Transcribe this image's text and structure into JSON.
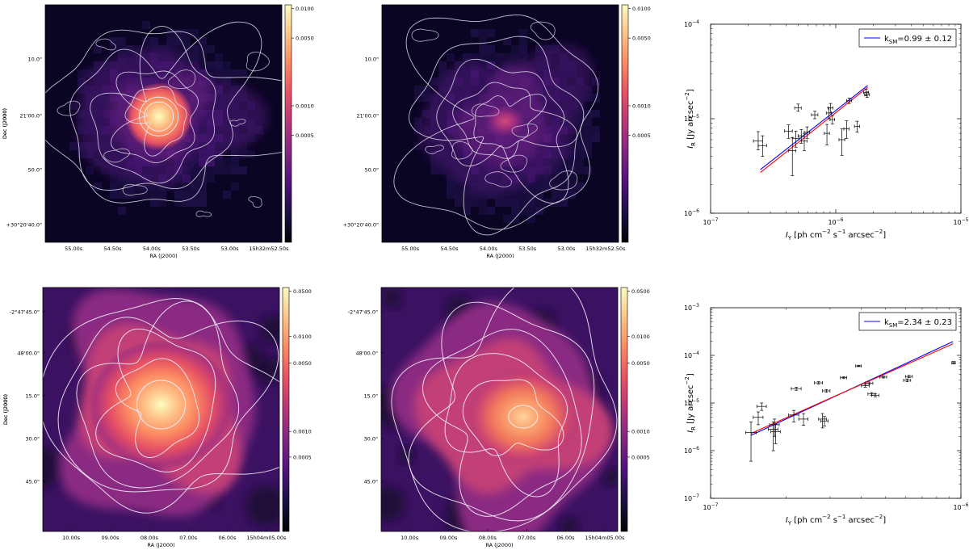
{
  "chart_data": [
    {
      "type": "heatmap",
      "panel": "top-left",
      "xlabel": "RA (J2000)",
      "ylabel": "Dec (J2000)",
      "x_ticks": [
        "55.00s",
        "54.50s",
        "54.00s",
        "53.50s",
        "53.00s",
        "15h32m52.50s"
      ],
      "y_ticks": [
        "10.0\"",
        "21'00.0\"",
        "50.0\"",
        "+30°20'40.0\""
      ],
      "colorbar": {
        "scale": "log",
        "ticks": [
          "0.0100",
          "0.0050",
          "0.0010",
          "0.0005"
        ]
      },
      "peak": {
        "x": 0.48,
        "y": 0.47,
        "strength": 1.0
      }
    },
    {
      "type": "heatmap",
      "panel": "top-middle",
      "xlabel": "RA (J2000)",
      "ylabel": "Dec (J2000)",
      "x_ticks": [
        "55.00s",
        "54.50s",
        "54.00s",
        "53.50s",
        "53.00s",
        "15h32m52.50s"
      ],
      "y_ticks": [
        "10.0\"",
        "21'00.0\"",
        "50.0\"",
        "+30°20'40.0\""
      ],
      "colorbar": {
        "scale": "log",
        "ticks": [
          "0.0100",
          "0.0050",
          "0.0010",
          "0.0005"
        ]
      },
      "peak": {
        "x": 0.52,
        "y": 0.49,
        "strength": 0.55
      }
    },
    {
      "type": "scatter",
      "panel": "top-right",
      "xlabel": "I_Y [ph cm^-2 s^-1 arcsec^-2]",
      "ylabel": "I_R [Jy arcsec^-2]",
      "xscale": "log",
      "yscale": "log",
      "xlim": [
        1e-07,
        1e-05
      ],
      "ylim": [
        1e-06,
        0.0001
      ],
      "x_ticks": [
        "10^-7",
        "10^-6",
        "10^-5"
      ],
      "y_ticks": [
        "10^-6",
        "10^-5",
        "10^-4"
      ],
      "legend": {
        "label": "k_SM=0.99 ± 0.12",
        "loc": "top-right"
      },
      "fits": [
        {
          "color": "#0000ff",
          "x": [
            2.5e-07,
            1.8e-06
          ],
          "y": [
            2.9e-06,
            2.25e-05
          ]
        },
        {
          "color": "#ff0000",
          "x": [
            2.5e-07,
            1.8e-06
          ],
          "y": [
            2.7e-06,
            2.15e-05
          ]
        }
      ],
      "points": [
        {
          "x": 2.4e-07,
          "y": 5.8e-06,
          "yerr": [
            4.7e-06,
            7.3e-06
          ],
          "xerr": [
            2.2e-07,
            2.6e-07
          ]
        },
        {
          "x": 2.6e-07,
          "y": 5.2e-06,
          "yerr": [
            4e-06,
            6.6e-06
          ],
          "xerr": [
            2.4e-07,
            2.8e-07
          ]
        },
        {
          "x": 4.2e-07,
          "y": 7.4e-06,
          "yerr": [
            6.2e-06,
            8.6e-06
          ],
          "xerr": [
            3.9e-07,
            4.5e-07
          ]
        },
        {
          "x": 4.5e-07,
          "y": 4.6e-06,
          "yerr": [
            2.5e-06,
            6.3e-06
          ],
          "xerr": [
            4.2e-07,
            4.8e-07
          ]
        },
        {
          "x": 4.8e-07,
          "y": 6.2e-06,
          "yerr": [
            5e-06,
            7.4e-06
          ],
          "xerr": [
            4.5e-07,
            5.1e-07
          ]
        },
        {
          "x": 5e-07,
          "y": 1.3e-05,
          "yerr": [
            1.2e-05,
            1.43e-05
          ],
          "xerr": [
            4.7e-07,
            5.3e-07
          ]
        },
        {
          "x": 5.3e-07,
          "y": 6.6e-06,
          "yerr": [
            5.5e-06,
            7.7e-06
          ],
          "xerr": [
            5e-07,
            5.6e-07
          ]
        },
        {
          "x": 5.6e-07,
          "y": 5.8e-06,
          "yerr": [
            4.6e-06,
            7e-06
          ],
          "xerr": [
            5.3e-07,
            5.9e-07
          ]
        },
        {
          "x": 5.9e-07,
          "y": 7.2e-06,
          "yerr": [
            6.2e-06,
            8.2e-06
          ],
          "xerr": [
            5.6e-07,
            6.2e-07
          ]
        },
        {
          "x": 6.8e-07,
          "y": 1.1e-05,
          "yerr": [
            1e-05,
            1.2e-05
          ],
          "xerr": [
            6.4e-07,
            7.2e-07
          ]
        },
        {
          "x": 8.5e-07,
          "y": 7e-06,
          "yerr": [
            5.3e-06,
            8.7e-06
          ],
          "xerr": [
            8.1e-07,
            8.9e-07
          ]
        },
        {
          "x": 8.8e-07,
          "y": 1.15e-05,
          "yerr": [
            1e-05,
            1.3e-05
          ],
          "xerr": [
            8.4e-07,
            9.2e-07
          ]
        },
        {
          "x": 9.1e-07,
          "y": 1.3e-05,
          "yerr": [
            1.15e-05,
            1.45e-05
          ],
          "xerr": [
            8.7e-07,
            9.5e-07
          ]
        },
        {
          "x": 9.4e-07,
          "y": 9.8e-06,
          "yerr": [
            8.8e-06,
            1.08e-05
          ],
          "xerr": [
            9e-07,
            9.8e-07
          ]
        },
        {
          "x": 1.12e-06,
          "y": 6e-06,
          "yerr": [
            4.1e-06,
            7.8e-06
          ],
          "xerr": [
            1.06e-06,
            1.18e-06
          ]
        },
        {
          "x": 1.22e-06,
          "y": 7.8e-06,
          "yerr": [
            6.2e-06,
            9.5e-06
          ],
          "xerr": [
            1.16e-06,
            1.28e-06
          ]
        },
        {
          "x": 1.28e-06,
          "y": 1.55e-05,
          "yerr": [
            1.45e-05,
            1.65e-05
          ],
          "xerr": [
            1.22e-06,
            1.34e-06
          ]
        },
        {
          "x": 1.48e-06,
          "y": 8.3e-06,
          "yerr": [
            7.2e-06,
            9.4e-06
          ],
          "xerr": [
            1.41e-06,
            1.55e-06
          ]
        },
        {
          "x": 1.75e-06,
          "y": 1.9e-05,
          "yerr": [
            1.75e-05,
            2.05e-05
          ],
          "xerr": [
            1.67e-06,
            1.83e-06
          ]
        },
        {
          "x": 1.78e-06,
          "y": 1.8e-05,
          "yerr": [
            1.68e-05,
            1.92e-05
          ],
          "xerr": [
            1.7e-06,
            1.86e-06
          ]
        }
      ]
    },
    {
      "type": "heatmap",
      "panel": "bottom-left",
      "xlabel": "RA (J2000)",
      "ylabel": "Dec (J2000)",
      "x_ticks": [
        "10.00s",
        "09.00s",
        "08.00s",
        "07.00s",
        "06.00s",
        "15h04m05.00s"
      ],
      "y_ticks": [
        "-2°47'45.0\"",
        "48'00.0\"",
        "15.0\"",
        "30.0\"",
        "45.0\""
      ],
      "colorbar": {
        "scale": "log",
        "ticks": [
          "0.0500",
          "0.0100",
          "0.0050",
          "0.0010",
          "0.0005"
        ]
      },
      "peak": {
        "x": 0.5,
        "y": 0.48,
        "strength": 1.0
      }
    },
    {
      "type": "heatmap",
      "panel": "bottom-middle",
      "xlabel": "RA (J2000)",
      "ylabel": "Dec (J2000)",
      "x_ticks": [
        "10.00s",
        "09.00s",
        "08.00s",
        "07.00s",
        "06.00s",
        "15h04m05.00s"
      ],
      "y_ticks": [
        "-2°47'45.0\"",
        "48'00.0\"",
        "15.0\"",
        "30.0\"",
        "45.0\""
      ],
      "colorbar": {
        "scale": "log",
        "ticks": [
          "0.0500",
          "0.0100",
          "0.0050",
          "0.0010",
          "0.0005"
        ]
      },
      "peak": {
        "x": 0.6,
        "y": 0.53,
        "strength": 0.7
      }
    },
    {
      "type": "scatter",
      "panel": "bottom-right",
      "xlabel": "I_Y [ph cm^-2 s^-1 arcsec^-2]",
      "ylabel": "I_R [Jy arcsec^-2]",
      "xscale": "log",
      "yscale": "log",
      "xlim": [
        1e-07,
        1e-06
      ],
      "ylim": [
        1e-07,
        0.001
      ],
      "x_ticks": [
        "10^-7",
        "10^-6"
      ],
      "y_ticks": [
        "10^-7",
        "10^-6",
        "10^-5",
        "10^-4",
        "10^-3"
      ],
      "legend": {
        "label": "k_SM=2.34 ± 0.23",
        "loc": "top-right"
      },
      "fits": [
        {
          "color": "#0000ff",
          "x": [
            1.45e-07,
            9.3e-07
          ],
          "y": [
            2.1e-06,
            0.000195
          ]
        },
        {
          "color": "#ff0000",
          "x": [
            1.45e-07,
            9.3e-07
          ],
          "y": [
            2.3e-06,
            0.000175
          ]
        }
      ],
      "points": [
        {
          "x": 1.45e-07,
          "y": 2.4e-06,
          "yerr": [
            6e-07,
            4e-06
          ],
          "xerr": [
            1.38e-07,
            1.52e-07
          ]
        },
        {
          "x": 1.55e-07,
          "y": 5e-06,
          "yerr": [
            3.5e-06,
            6.5e-06
          ],
          "xerr": [
            1.48e-07,
            1.62e-07
          ]
        },
        {
          "x": 1.6e-07,
          "y": 8.5e-06,
          "yerr": [
            7e-06,
            1e-05
          ],
          "xerr": [
            1.53e-07,
            1.67e-07
          ]
        },
        {
          "x": 1.78e-07,
          "y": 2.8e-06,
          "yerr": [
            1e-06,
            4e-06
          ],
          "xerr": [
            1.7e-07,
            1.86e-07
          ]
        },
        {
          "x": 1.8e-07,
          "y": 3.5e-06,
          "yerr": [
            2e-06,
            4.6e-06
          ],
          "xerr": [
            1.72e-07,
            1.88e-07
          ]
        },
        {
          "x": 1.82e-07,
          "y": 2.5e-06,
          "yerr": [
            1.4e-06,
            3.6e-06
          ],
          "xerr": [
            1.74e-07,
            1.9e-07
          ]
        },
        {
          "x": 2.15e-07,
          "y": 5.6e-06,
          "yerr": [
            4e-06,
            7e-06
          ],
          "xerr": [
            2.05e-07,
            2.25e-07
          ]
        },
        {
          "x": 2.2e-07,
          "y": 2e-05,
          "yerr": [
            1.85e-05,
            2.15e-05
          ],
          "xerr": [
            2.1e-07,
            2.3e-07
          ]
        },
        {
          "x": 2.35e-07,
          "y": 4.6e-06,
          "yerr": [
            3.4e-06,
            6e-06
          ],
          "xerr": [
            2.25e-07,
            2.45e-07
          ]
        },
        {
          "x": 2.7e-07,
          "y": 2.65e-05,
          "yerr": [
            2.5e-05,
            2.8e-05
          ],
          "xerr": [
            2.6e-07,
            2.8e-07
          ]
        },
        {
          "x": 2.8e-07,
          "y": 4.6e-06,
          "yerr": [
            3e-06,
            6e-06
          ],
          "xerr": [
            2.7e-07,
            2.9e-07
          ]
        },
        {
          "x": 2.85e-07,
          "y": 4.2e-06,
          "yerr": [
            3.3e-06,
            5.2e-06
          ],
          "xerr": [
            2.75e-07,
            2.95e-07
          ]
        },
        {
          "x": 2.9e-07,
          "y": 1.8e-05,
          "yerr": [
            1.68e-05,
            1.92e-05
          ],
          "xerr": [
            2.8e-07,
            3e-07
          ]
        },
        {
          "x": 3.4e-07,
          "y": 3.4e-05,
          "yerr": [
            3.25e-05,
            3.55e-05
          ],
          "xerr": [
            3.3e-07,
            3.5e-07
          ]
        },
        {
          "x": 3.9e-07,
          "y": 6e-05,
          "yerr": [
            5.8e-05,
            6.2e-05
          ],
          "xerr": [
            3.8e-07,
            4e-07
          ]
        },
        {
          "x": 4.15e-07,
          "y": 2.3e-05,
          "yerr": [
            2.15e-05,
            2.45e-05
          ],
          "xerr": [
            4e-07,
            4.3e-07
          ]
        },
        {
          "x": 4.3e-07,
          "y": 2.6e-05,
          "yerr": [
            2.45e-05,
            2.75e-05
          ],
          "xerr": [
            4.15e-07,
            4.45e-07
          ]
        },
        {
          "x": 4.4e-07,
          "y": 1.55e-05,
          "yerr": [
            1.45e-05,
            1.65e-05
          ],
          "xerr": [
            4.25e-07,
            4.55e-07
          ]
        },
        {
          "x": 4.55e-07,
          "y": 1.45e-05,
          "yerr": [
            1.35e-05,
            1.55e-05
          ],
          "xerr": [
            4.4e-07,
            4.7e-07
          ]
        },
        {
          "x": 4.9e-07,
          "y": 3.5e-05,
          "yerr": [
            3.35e-05,
            3.65e-05
          ],
          "xerr": [
            4.75e-07,
            5.05e-07
          ]
        },
        {
          "x": 6.1e-07,
          "y": 3e-05,
          "yerr": [
            2.8e-05,
            3.2e-05
          ],
          "xerr": [
            5.9e-07,
            6.3e-07
          ]
        },
        {
          "x": 6.2e-07,
          "y": 3.6e-05,
          "yerr": [
            3.4e-05,
            3.8e-05
          ],
          "xerr": [
            6e-07,
            6.4e-07
          ]
        },
        {
          "x": 9.35e-07,
          "y": 7e-05,
          "yerr": [
            6.6e-05,
            7.4e-05
          ],
          "xerr": [
            9.2e-07,
            9.5e-07
          ]
        }
      ]
    }
  ]
}
